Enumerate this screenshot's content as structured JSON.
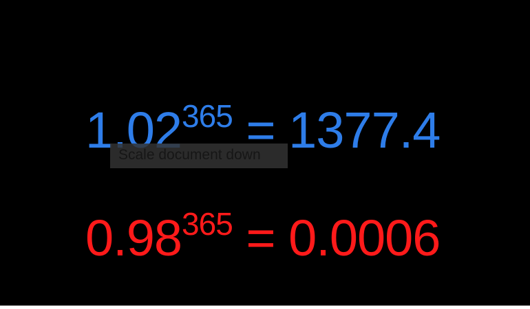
{
  "equations": {
    "growth": {
      "base": "1.02",
      "exponent": "365",
      "equals": "=",
      "result": "1377.4",
      "color": "#2e7de9"
    },
    "decline": {
      "base": "0.98",
      "exponent": "365",
      "equals": "=",
      "result": "0.0006",
      "color": "#ff1a1a"
    }
  },
  "tooltip": {
    "text": "Scale document down"
  }
}
